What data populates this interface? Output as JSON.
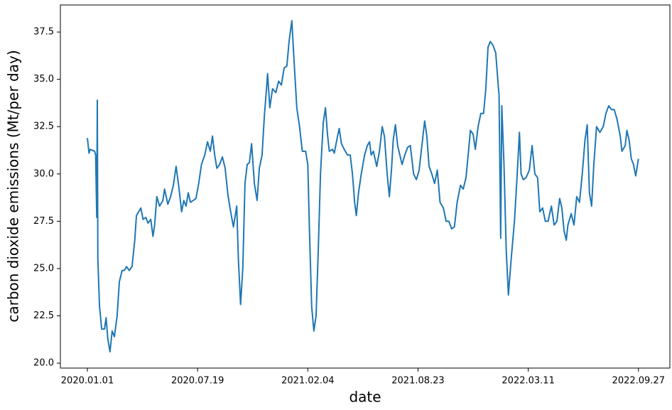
{
  "chart_data": {
    "type": "line",
    "xlabel": "date",
    "ylabel": "carbon dioxide emissions (Mt/per day)",
    "color": "#1f77b4",
    "xlim": [
      "2019-11-13",
      "2022-11-23"
    ],
    "xticks": [
      {
        "value": "2020-01-01",
        "label": "2020.01.01"
      },
      {
        "value": "2020-07-19",
        "label": "2020.07.19"
      },
      {
        "value": "2021-02-04",
        "label": "2021.02.04"
      },
      {
        "value": "2021-08-23",
        "label": "2021.08.23"
      },
      {
        "value": "2022-03-11",
        "label": "2022.03.11"
      },
      {
        "value": "2022-09-27",
        "label": "2022.09.27"
      }
    ],
    "ylim": [
      19.74,
      38.93
    ],
    "yticks": [
      {
        "value": 20,
        "label": "20.0"
      },
      22.5,
      {
        "value": 25,
        "label": "25.0"
      },
      27.5,
      {
        "value": 30,
        "label": "30.0"
      },
      32.5,
      {
        "value": 35,
        "label": "35.0"
      },
      37.5
    ],
    "x": [
      "2020-01-01",
      "2020-01-04",
      "2020-01-06",
      "2020-01-14",
      "2020-01-16",
      "2020-01-18",
      "2020-01-19",
      "2020-01-20",
      "2020-01-23",
      "2020-01-27",
      "2020-02-01",
      "2020-02-04",
      "2020-02-07",
      "2020-02-11",
      "2020-02-15",
      "2020-02-19",
      "2020-02-24",
      "2020-02-28",
      "2020-03-04",
      "2020-03-08",
      "2020-03-12",
      "2020-03-17",
      "2020-03-22",
      "2020-03-27",
      "2020-03-30",
      "2020-04-03",
      "2020-04-07",
      "2020-04-11",
      "2020-04-16",
      "2020-04-20",
      "2020-04-25",
      "2020-04-29",
      "2020-05-02",
      "2020-05-06",
      "2020-05-11",
      "2020-05-17",
      "2020-05-20",
      "2020-05-26",
      "2020-05-31",
      "2020-06-05",
      "2020-06-10",
      "2020-06-15",
      "2020-06-20",
      "2020-06-24",
      "2020-06-28",
      "2020-07-02",
      "2020-07-06",
      "2020-07-11",
      "2020-07-16",
      "2020-07-21",
      "2020-07-26",
      "2020-08-01",
      "2020-08-06",
      "2020-08-11",
      "2020-08-15",
      "2020-08-19",
      "2020-08-23",
      "2020-08-28",
      "2020-09-02",
      "2020-09-07",
      "2020-09-12",
      "2020-09-17",
      "2020-09-22",
      "2020-09-28",
      "2020-10-01",
      "2020-10-05",
      "2020-10-09",
      "2020-10-13",
      "2020-10-17",
      "2020-10-21",
      "2020-10-25",
      "2020-10-30",
      "2020-11-04",
      "2020-11-08",
      "2020-11-13",
      "2020-11-17",
      "2020-11-21",
      "2020-11-23",
      "2020-11-27",
      "2020-12-02",
      "2020-12-08",
      "2020-12-13",
      "2020-12-18",
      "2020-12-23",
      "2020-12-28",
      "2021-01-01",
      "2021-01-06",
      "2021-01-10",
      "2021-01-15",
      "2021-01-20",
      "2021-01-25",
      "2021-01-31",
      "2021-02-04",
      "2021-02-07",
      "2021-02-11",
      "2021-02-15",
      "2021-02-19",
      "2021-02-23",
      "2021-02-27",
      "2021-03-04",
      "2021-03-08",
      "2021-03-12",
      "2021-03-15",
      "2021-03-21",
      "2021-03-24",
      "2021-03-30",
      "2021-04-02",
      "2021-04-06",
      "2021-04-11",
      "2021-04-17",
      "2021-04-22",
      "2021-04-26",
      "2021-04-30",
      "2021-05-03",
      "2021-05-07",
      "2021-05-12",
      "2021-05-18",
      "2021-05-23",
      "2021-05-27",
      "2021-05-30",
      "2021-06-03",
      "2021-06-09",
      "2021-06-14",
      "2021-06-19",
      "2021-06-23",
      "2021-06-28",
      "2021-07-02",
      "2021-07-06",
      "2021-07-09",
      "2021-07-13",
      "2021-07-17",
      "2021-07-21",
      "2021-07-25",
      "2021-07-30",
      "2021-08-04",
      "2021-08-09",
      "2021-08-15",
      "2021-08-20",
      "2021-08-25",
      "2021-08-30",
      "2021-09-04",
      "2021-09-08",
      "2021-09-12",
      "2021-09-17",
      "2021-09-22",
      "2021-09-27",
      "2021-10-02",
      "2021-10-08",
      "2021-10-13",
      "2021-10-18",
      "2021-10-23",
      "2021-10-28",
      "2021-11-02",
      "2021-11-08",
      "2021-11-13",
      "2021-11-18",
      "2021-11-22",
      "2021-11-26",
      "2021-12-01",
      "2021-12-05",
      "2021-12-10",
      "2021-12-15",
      "2021-12-20",
      "2021-12-24",
      "2021-12-28",
      "2022-01-01",
      "2022-01-06",
      "2022-01-11",
      "2022-01-16",
      "2022-01-17",
      "2022-01-20",
      "2022-01-22",
      "2022-01-26",
      "2022-01-30",
      "2022-02-03",
      "2022-02-08",
      "2022-02-14",
      "2022-02-19",
      "2022-02-23",
      "2022-02-26",
      "2022-03-02",
      "2022-03-07",
      "2022-03-13",
      "2022-03-18",
      "2022-03-23",
      "2022-03-28",
      "2022-04-01",
      "2022-04-06",
      "2022-04-11",
      "2022-04-16",
      "2022-04-22",
      "2022-04-27",
      "2022-05-02",
      "2022-05-07",
      "2022-05-11",
      "2022-05-15",
      "2022-05-19",
      "2022-05-22",
      "2022-05-28",
      "2022-06-02",
      "2022-06-07",
      "2022-06-12",
      "2022-06-17",
      "2022-06-22",
      "2022-06-26",
      "2022-06-30",
      "2022-07-04",
      "2022-07-08",
      "2022-07-13",
      "2022-07-19",
      "2022-07-25",
      "2022-07-30",
      "2022-08-04",
      "2022-08-09",
      "2022-08-14",
      "2022-08-19",
      "2022-08-25",
      "2022-08-28",
      "2022-09-03",
      "2022-09-06",
      "2022-09-10",
      "2022-09-14",
      "2022-09-18",
      "2022-09-22",
      "2022-09-27"
    ],
    "values": [
      31.9,
      31.1,
      31.3,
      31.2,
      31.0,
      27.7,
      33.9,
      25.5,
      23.0,
      21.8,
      21.8,
      22.4,
      21.3,
      20.6,
      21.7,
      21.4,
      22.5,
      24.3,
      24.9,
      24.9,
      25.1,
      24.9,
      25.1,
      26.5,
      27.8,
      28.0,
      28.2,
      27.6,
      27.7,
      27.4,
      27.6,
      26.7,
      27.3,
      28.8,
      28.3,
      28.6,
      29.2,
      28.4,
      28.8,
      29.4,
      30.4,
      29.3,
      28.0,
      28.6,
      28.3,
      29.0,
      28.5,
      28.6,
      28.7,
      29.5,
      30.5,
      31.0,
      31.7,
      31.2,
      32.0,
      31.0,
      30.3,
      30.5,
      30.9,
      30.3,
      28.9,
      28.0,
      27.2,
      28.3,
      25.5,
      23.1,
      25.0,
      29.5,
      30.5,
      30.6,
      31.6,
      29.5,
      28.6,
      30.3,
      31.0,
      33.0,
      34.5,
      35.3,
      33.5,
      34.5,
      34.3,
      34.9,
      34.7,
      35.6,
      35.7,
      37.0,
      38.1,
      36.0,
      33.5,
      32.5,
      31.2,
      31.2,
      30.5,
      27.0,
      23.0,
      21.7,
      22.5,
      26.0,
      30.0,
      32.7,
      33.5,
      32.0,
      31.2,
      31.3,
      31.1,
      32.0,
      32.4,
      31.6,
      31.3,
      31.0,
      31.0,
      30.0,
      28.5,
      27.8,
      29.0,
      30.0,
      31.0,
      31.5,
      31.7,
      31.0,
      31.2,
      30.4,
      31.2,
      32.5,
      32.0,
      30.0,
      28.8,
      30.3,
      31.8,
      32.6,
      31.5,
      31.0,
      30.5,
      31.0,
      31.4,
      31.5,
      30.0,
      29.7,
      30.2,
      31.5,
      32.8,
      32.0,
      30.4,
      30.0,
      29.5,
      30.2,
      28.5,
      28.2,
      27.5,
      27.5,
      27.1,
      27.2,
      28.5,
      29.4,
      29.2,
      29.8,
      31.0,
      32.3,
      32.1,
      31.3,
      32.5,
      33.2,
      33.2,
      34.5,
      36.7,
      37.0,
      36.8,
      36.4,
      34.5,
      34.2,
      26.6,
      33.6,
      30.5,
      26.0,
      23.6,
      25.5,
      27.5,
      30.0,
      32.2,
      30.0,
      29.7,
      29.8,
      30.2,
      31.5,
      30.0,
      29.8,
      28.0,
      28.2,
      27.5,
      27.5,
      28.3,
      27.3,
      27.5,
      28.7,
      28.2,
      27.0,
      26.5,
      27.3,
      27.9,
      27.3,
      28.8,
      28.5,
      30.0,
      31.8,
      32.6,
      29.0,
      28.3,
      30.5,
      32.5,
      32.2,
      32.5,
      33.2,
      33.6,
      33.4,
      33.4,
      32.9,
      32.0,
      31.2,
      31.5,
      32.3,
      31.8,
      30.8,
      30.5,
      29.9,
      30.8
    ]
  }
}
